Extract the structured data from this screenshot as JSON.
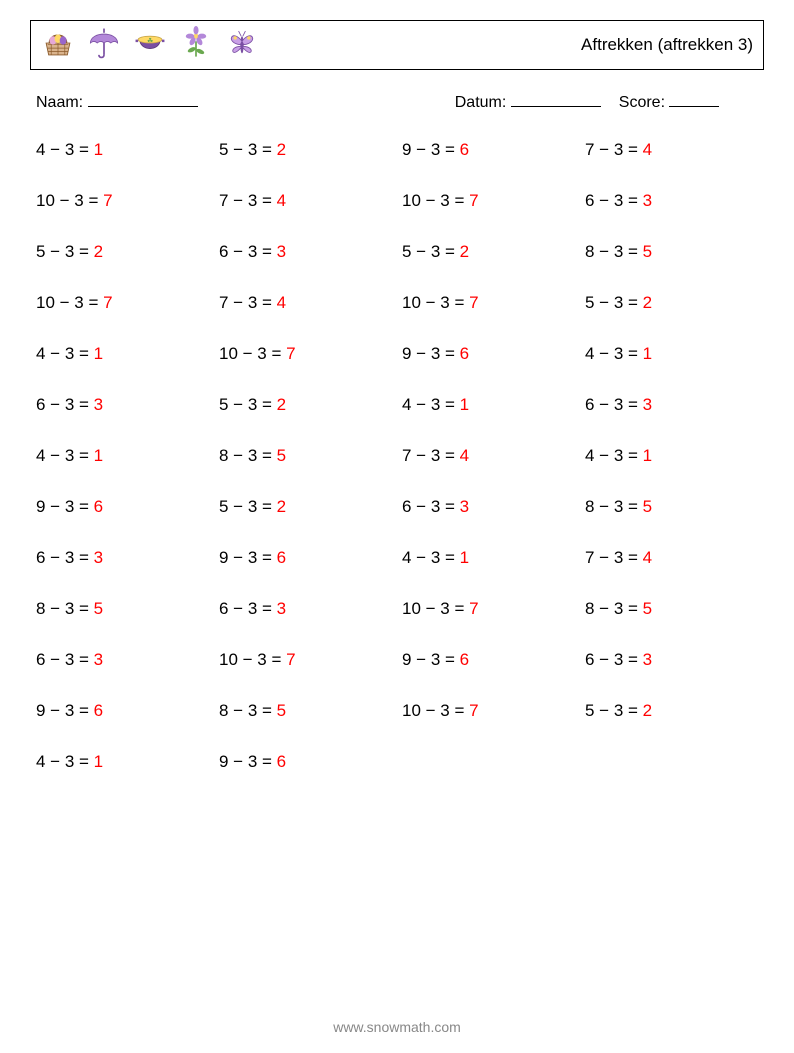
{
  "header": {
    "title": "Aftrekken (aftrekken 3)",
    "icons": [
      "basket",
      "umbrella",
      "pot",
      "flower",
      "butterfly"
    ]
  },
  "info": {
    "name_label": "Naam:",
    "date_label": "Datum:",
    "score_label": "Score:",
    "name_underline_width": 110,
    "date_underline_width": 90,
    "score_underline_width": 50
  },
  "style": {
    "problem_color": "#000000",
    "answer_color": "#ff0000",
    "font_size": 17,
    "background": "#ffffff",
    "icon_purple": "#9966cc",
    "icon_yellow": "#ffd966",
    "icon_pink": "#e6a8d7",
    "icon_green": "#6aa84f"
  },
  "columns": 4,
  "rows": 13,
  "minus_sign": "−",
  "equals_sign": "=",
  "problems": [
    {
      "a": 4,
      "b": 3,
      "ans": 1
    },
    {
      "a": 5,
      "b": 3,
      "ans": 2
    },
    {
      "a": 9,
      "b": 3,
      "ans": 6
    },
    {
      "a": 7,
      "b": 3,
      "ans": 4
    },
    {
      "a": 10,
      "b": 3,
      "ans": 7
    },
    {
      "a": 7,
      "b": 3,
      "ans": 4
    },
    {
      "a": 10,
      "b": 3,
      "ans": 7
    },
    {
      "a": 6,
      "b": 3,
      "ans": 3
    },
    {
      "a": 5,
      "b": 3,
      "ans": 2
    },
    {
      "a": 6,
      "b": 3,
      "ans": 3
    },
    {
      "a": 5,
      "b": 3,
      "ans": 2
    },
    {
      "a": 8,
      "b": 3,
      "ans": 5
    },
    {
      "a": 10,
      "b": 3,
      "ans": 7
    },
    {
      "a": 7,
      "b": 3,
      "ans": 4
    },
    {
      "a": 10,
      "b": 3,
      "ans": 7
    },
    {
      "a": 5,
      "b": 3,
      "ans": 2
    },
    {
      "a": 4,
      "b": 3,
      "ans": 1
    },
    {
      "a": 10,
      "b": 3,
      "ans": 7
    },
    {
      "a": 9,
      "b": 3,
      "ans": 6
    },
    {
      "a": 4,
      "b": 3,
      "ans": 1
    },
    {
      "a": 6,
      "b": 3,
      "ans": 3
    },
    {
      "a": 5,
      "b": 3,
      "ans": 2
    },
    {
      "a": 4,
      "b": 3,
      "ans": 1
    },
    {
      "a": 6,
      "b": 3,
      "ans": 3
    },
    {
      "a": 4,
      "b": 3,
      "ans": 1
    },
    {
      "a": 8,
      "b": 3,
      "ans": 5
    },
    {
      "a": 7,
      "b": 3,
      "ans": 4
    },
    {
      "a": 4,
      "b": 3,
      "ans": 1
    },
    {
      "a": 9,
      "b": 3,
      "ans": 6
    },
    {
      "a": 5,
      "b": 3,
      "ans": 2
    },
    {
      "a": 6,
      "b": 3,
      "ans": 3
    },
    {
      "a": 8,
      "b": 3,
      "ans": 5
    },
    {
      "a": 6,
      "b": 3,
      "ans": 3
    },
    {
      "a": 9,
      "b": 3,
      "ans": 6
    },
    {
      "a": 4,
      "b": 3,
      "ans": 1
    },
    {
      "a": 7,
      "b": 3,
      "ans": 4
    },
    {
      "a": 8,
      "b": 3,
      "ans": 5
    },
    {
      "a": 6,
      "b": 3,
      "ans": 3
    },
    {
      "a": 10,
      "b": 3,
      "ans": 7
    },
    {
      "a": 8,
      "b": 3,
      "ans": 5
    },
    {
      "a": 6,
      "b": 3,
      "ans": 3
    },
    {
      "a": 10,
      "b": 3,
      "ans": 7
    },
    {
      "a": 9,
      "b": 3,
      "ans": 6
    },
    {
      "a": 6,
      "b": 3,
      "ans": 3
    },
    {
      "a": 9,
      "b": 3,
      "ans": 6
    },
    {
      "a": 8,
      "b": 3,
      "ans": 5
    },
    {
      "a": 10,
      "b": 3,
      "ans": 7
    },
    {
      "a": 5,
      "b": 3,
      "ans": 2
    },
    {
      "a": 4,
      "b": 3,
      "ans": 1
    },
    {
      "a": 9,
      "b": 3,
      "ans": 6
    }
  ],
  "footer": "www.snowmath.com"
}
